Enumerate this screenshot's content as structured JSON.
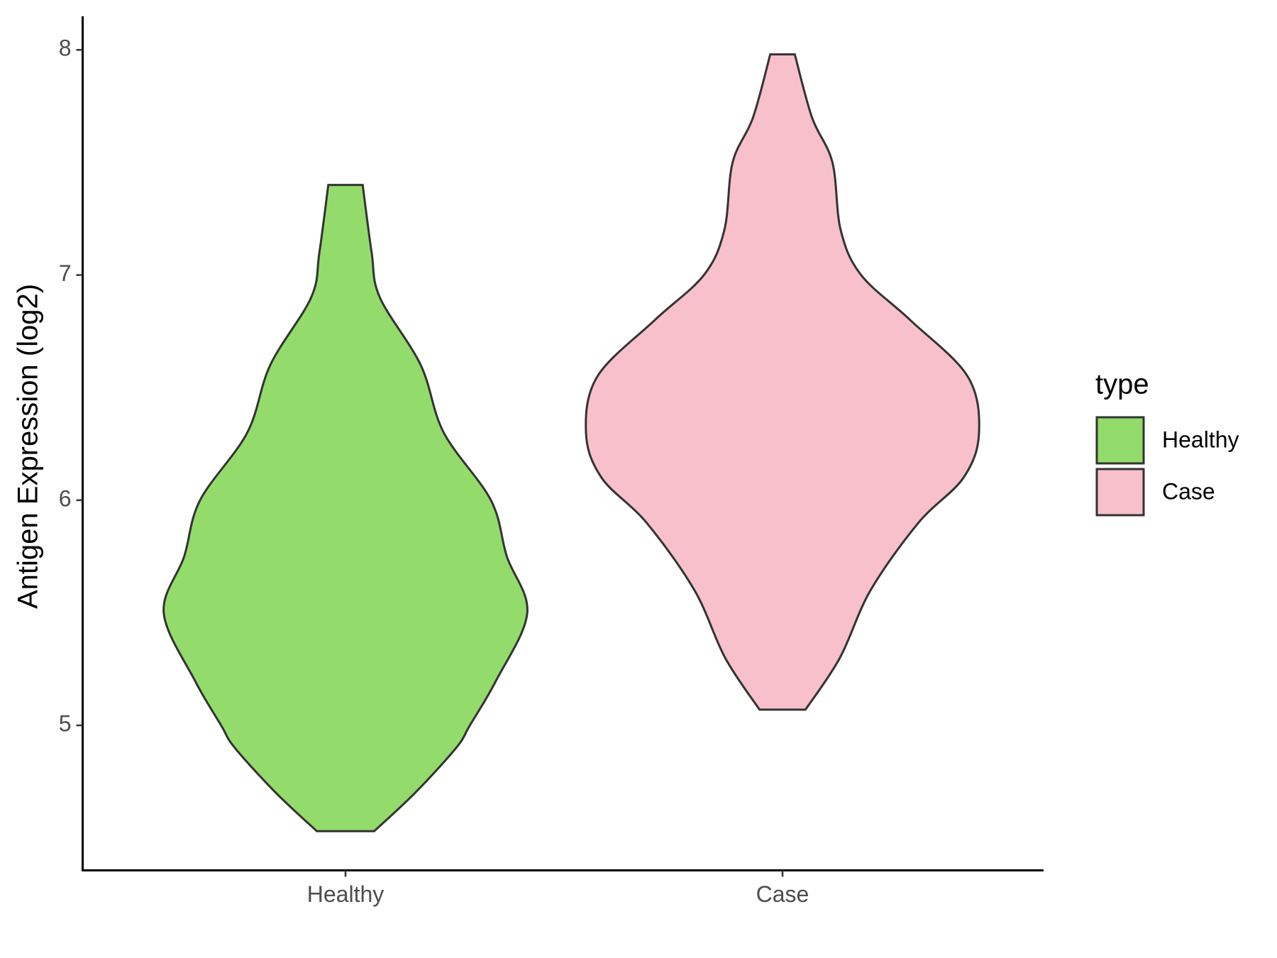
{
  "chart_data": {
    "type": "violin",
    "y_label": "Antigen Expression (log2)",
    "categories": [
      "Healthy",
      "Case"
    ],
    "legend_title": "type",
    "legend": "right",
    "ylim": [
      4.356,
      8.149
    ],
    "yticks": [
      5,
      6,
      7,
      8
    ],
    "series": [
      {
        "name": "Healthy",
        "color": "#93dc6b",
        "y": [
          4.53,
          4.7,
          4.9,
          5.0,
          5.2,
          5.5,
          5.75,
          6.0,
          6.3,
          6.6,
          6.9,
          7.1,
          7.4
        ],
        "density": [
          0.146,
          0.354,
          0.563,
          0.633,
          0.767,
          0.925,
          0.821,
          0.74,
          0.5,
          0.383,
          0.175,
          0.133,
          0.0875
        ]
      },
      {
        "name": "Case",
        "color": "#f8c0cb",
        "y": [
          5.07,
          5.3,
          5.6,
          5.9,
          6.1,
          6.3,
          6.55,
          6.8,
          7.0,
          7.2,
          7.5,
          7.7,
          7.98
        ],
        "density": [
          0.117,
          0.292,
          0.448,
          0.692,
          0.921,
          1.0,
          0.942,
          0.65,
          0.4,
          0.296,
          0.254,
          0.15,
          0.0625
        ]
      }
    ]
  }
}
